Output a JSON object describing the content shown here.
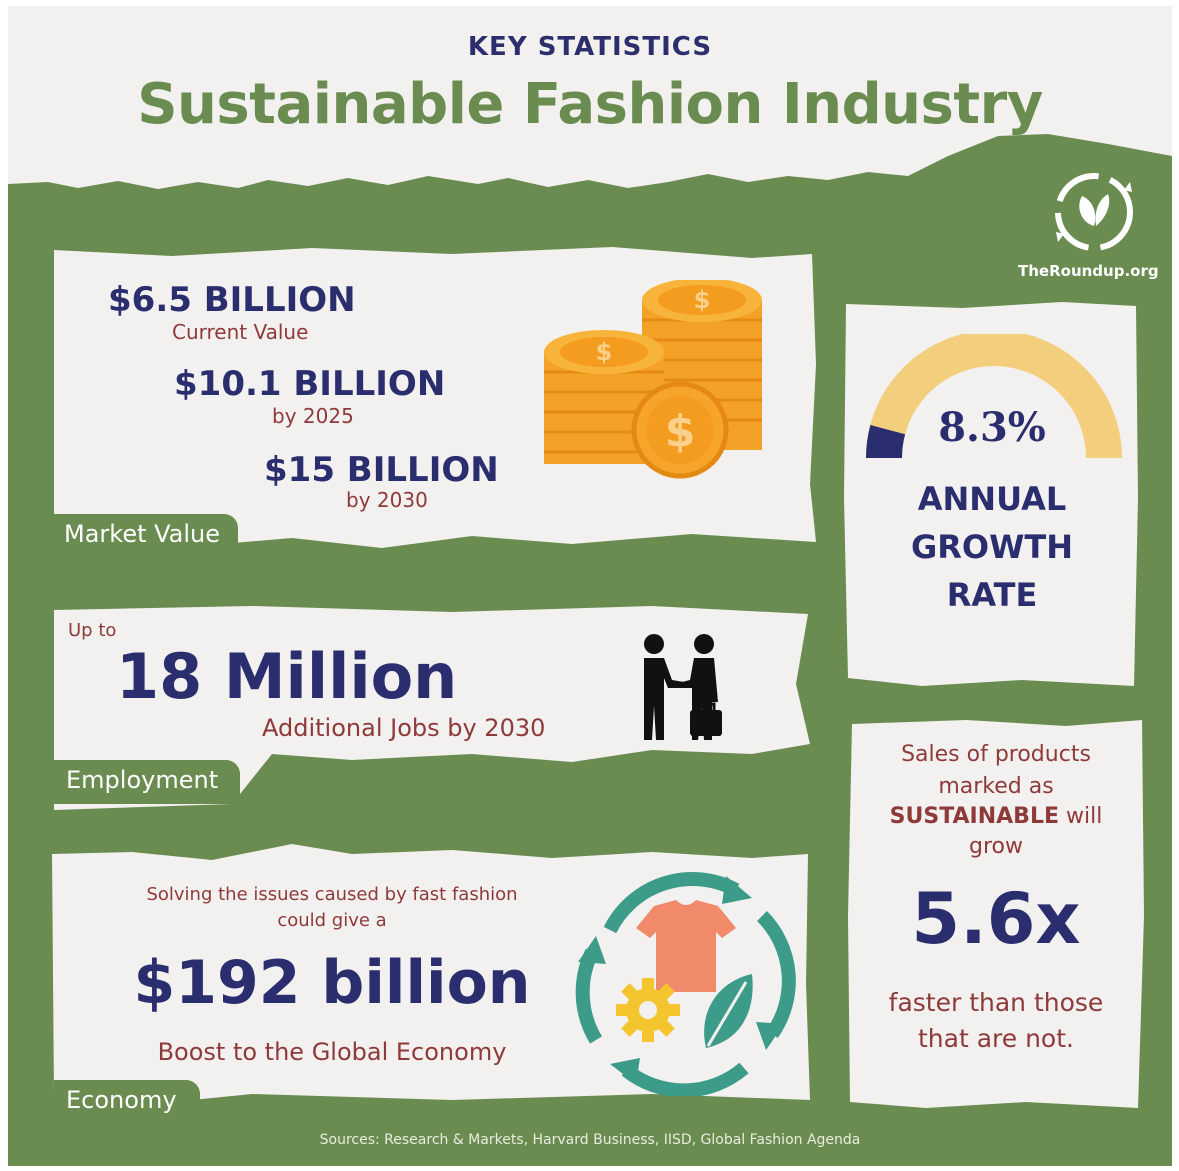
{
  "header": {
    "kicker": "KEY STATISTICS",
    "title": "Sustainable Fashion Industry"
  },
  "logo": {
    "text": "TheRoundup.org",
    "icon": "recycle-leaf-icon"
  },
  "market_value": {
    "tag": "Market Value",
    "current_amount": "$6.5  BILLION",
    "current_label": "Current Value",
    "y2025_amount": "$10.1  BILLION",
    "y2025_label": "by 2025",
    "y2030_amount": "$15  BILLION",
    "y2030_label": "by 2030",
    "icon": "coin-stacks-icon"
  },
  "growth": {
    "value": "8.3%",
    "gauge_fraction": 0.083,
    "line1": "ANNUAL",
    "line2": "GROWTH",
    "line3": "RATE"
  },
  "employment": {
    "tag": "Employment",
    "prefix": "Up to",
    "amount": "18 Million",
    "label": "Additional Jobs by 2030",
    "icon": "handshake-people-icon"
  },
  "sales": {
    "line1": "Sales of products",
    "line2": "marked as",
    "emphasis": "SUSTAINABLE",
    "after_emphasis": " will",
    "line4": "grow",
    "multiplier": "5.6x",
    "line5": "faster than those",
    "line6": "that are not."
  },
  "economy": {
    "tag": "Economy",
    "intro1": "Solving the issues caused by fast fashion",
    "intro2": "could give a",
    "amount": "$192 billion",
    "label": "Boost to the Global Economy",
    "icon": "circular-fashion-icon"
  },
  "sources": "Sources: Research & Markets, Harvard Business, IISD, Global Fashion Agenda",
  "colors": {
    "green": "#6b8c50",
    "navy": "#2b2e6e",
    "maroon": "#8f3a3a",
    "gauge_track": "#f3cf7d",
    "coin": "#f6a623",
    "teal": "#3d9b8a"
  }
}
